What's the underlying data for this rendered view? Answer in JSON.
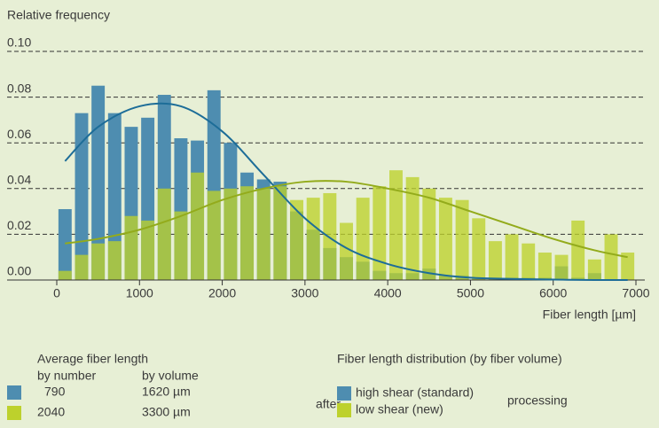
{
  "chart_data": {
    "type": "histogram_curves",
    "y_label": "Relative frequency",
    "x_label": "Fiber length [µm]",
    "xlim": [
      0,
      7000
    ],
    "xticks": [
      0,
      1000,
      2000,
      3000,
      4000,
      5000,
      6000,
      7000
    ],
    "ylim": [
      0,
      0.1
    ],
    "yticks": [
      {
        "value": 0,
        "label": "0.00"
      },
      {
        "value": 0.02,
        "label": "0.02"
      },
      {
        "value": 0.04,
        "label": "0.04"
      },
      {
        "value": 0.06,
        "label": "0.06"
      },
      {
        "value": 0.08,
        "label": "0.08"
      },
      {
        "value": 0.1,
        "label": "0.10"
      }
    ],
    "grid": true,
    "x": [
      100,
      300,
      500,
      700,
      900,
      1100,
      1300,
      1500,
      1700,
      1900,
      2100,
      2300,
      2500,
      2700,
      2900,
      3100,
      3300,
      3500,
      3700,
      3900,
      4100,
      4300,
      4500,
      4700,
      4900,
      5100,
      5300,
      5500,
      5700,
      5900,
      6100,
      6300,
      6500,
      6700,
      6900
    ],
    "series": [
      {
        "name": "high shear (standard)",
        "color": "#4e8db0",
        "curve_color": "#1d6d98",
        "values": [
          0.031,
          0.073,
          0.085,
          0.073,
          0.067,
          0.071,
          0.081,
          0.062,
          0.061,
          0.083,
          0.06,
          0.047,
          0.044,
          0.043,
          0.03,
          0.022,
          0.014,
          0.01,
          0.008,
          0.004,
          0.003,
          0.003,
          0.005,
          0.002,
          0.002,
          0.001,
          0.001,
          0.001,
          0.001,
          0.001,
          0.006,
          0.001,
          0.003,
          0,
          0
        ],
        "average_by_number": "790",
        "average_by_volume": "1620 µm"
      },
      {
        "name": "low shear (new)",
        "color": "#bdd12c",
        "curve_color": "#93ab1b",
        "values": [
          0.004,
          0.011,
          0.016,
          0.017,
          0.028,
          0.026,
          0.04,
          0.03,
          0.047,
          0.039,
          0.04,
          0.041,
          0.04,
          0.041,
          0.035,
          0.036,
          0.038,
          0.025,
          0.036,
          0.041,
          0.048,
          0.045,
          0.04,
          0.036,
          0.035,
          0.027,
          0.017,
          0.02,
          0.016,
          0.012,
          0.011,
          0.026,
          0.009,
          0.02,
          0.012
        ],
        "average_by_number": "2040",
        "average_by_volume": "3300 µm"
      }
    ],
    "curve_x": [
      100,
      500,
      1000,
      1500,
      2000,
      2500,
      3000,
      3500,
      4000,
      4500,
      5000,
      5500,
      6000,
      6500,
      6900
    ],
    "curves": [
      [
        0.052,
        0.067,
        0.076,
        0.076,
        0.065,
        0.046,
        0.027,
        0.014,
        0.007,
        0.003,
        0.001,
        0.0005,
        0.0002,
        0,
        0
      ],
      [
        0.016,
        0.018,
        0.022,
        0.028,
        0.035,
        0.04,
        0.043,
        0.043,
        0.04,
        0.036,
        0.03,
        0.024,
        0.018,
        0.013,
        0.01
      ]
    ],
    "legend": {
      "average_title": "Average fiber length",
      "col_number": "by number",
      "col_volume": "by volume",
      "distribution_title": "Fiber length distribution (by fiber volume)",
      "prefix": "after",
      "suffix": "processing"
    }
  }
}
